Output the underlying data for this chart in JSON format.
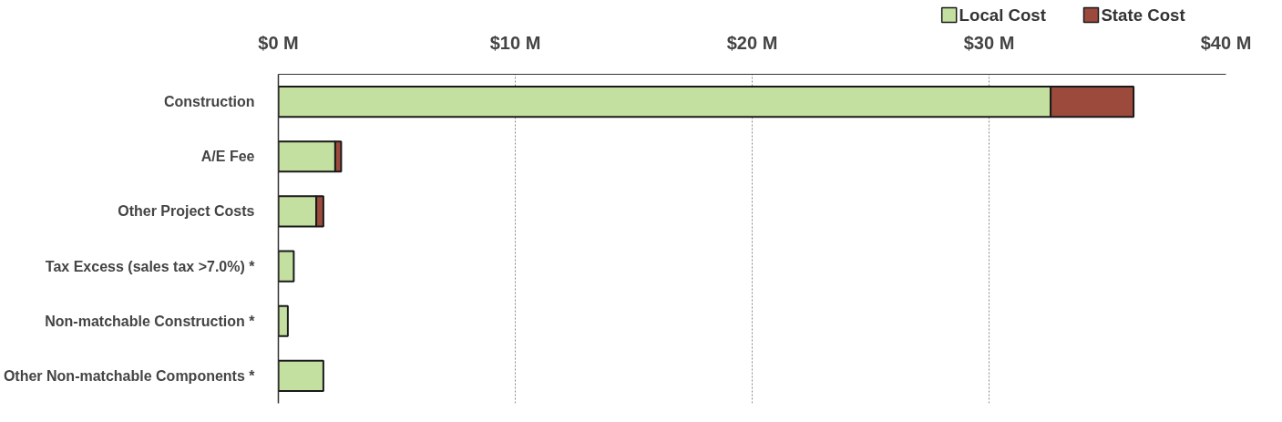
{
  "chart_data": {
    "type": "bar",
    "orientation": "horizontal",
    "stacked": true,
    "categories": [
      "Construction",
      "A/E Fee",
      "Other Project Costs",
      "Tax Excess (sales tax >7.0%) *",
      "Non-matchable Construction *",
      "Other Non-matchable Components *"
    ],
    "series": [
      {
        "name": "Local Cost",
        "color": "#c4e0a0",
        "values": [
          32.6,
          2.4,
          1.6,
          0.65,
          0.4,
          1.9
        ]
      },
      {
        "name": "State Cost",
        "color": "#9c4a3c",
        "values": [
          3.5,
          0.25,
          0.3,
          null,
          null,
          null
        ]
      }
    ],
    "xlim": [
      0,
      40
    ],
    "xticks": [
      {
        "value": 0,
        "label": "$0 M"
      },
      {
        "value": 10,
        "label": "$10 M"
      },
      {
        "value": 20,
        "label": "$20 M"
      },
      {
        "value": 30,
        "label": "$30 M"
      },
      {
        "value": 40,
        "label": "$40 M"
      }
    ],
    "grid": "x",
    "legend": "top right"
  }
}
